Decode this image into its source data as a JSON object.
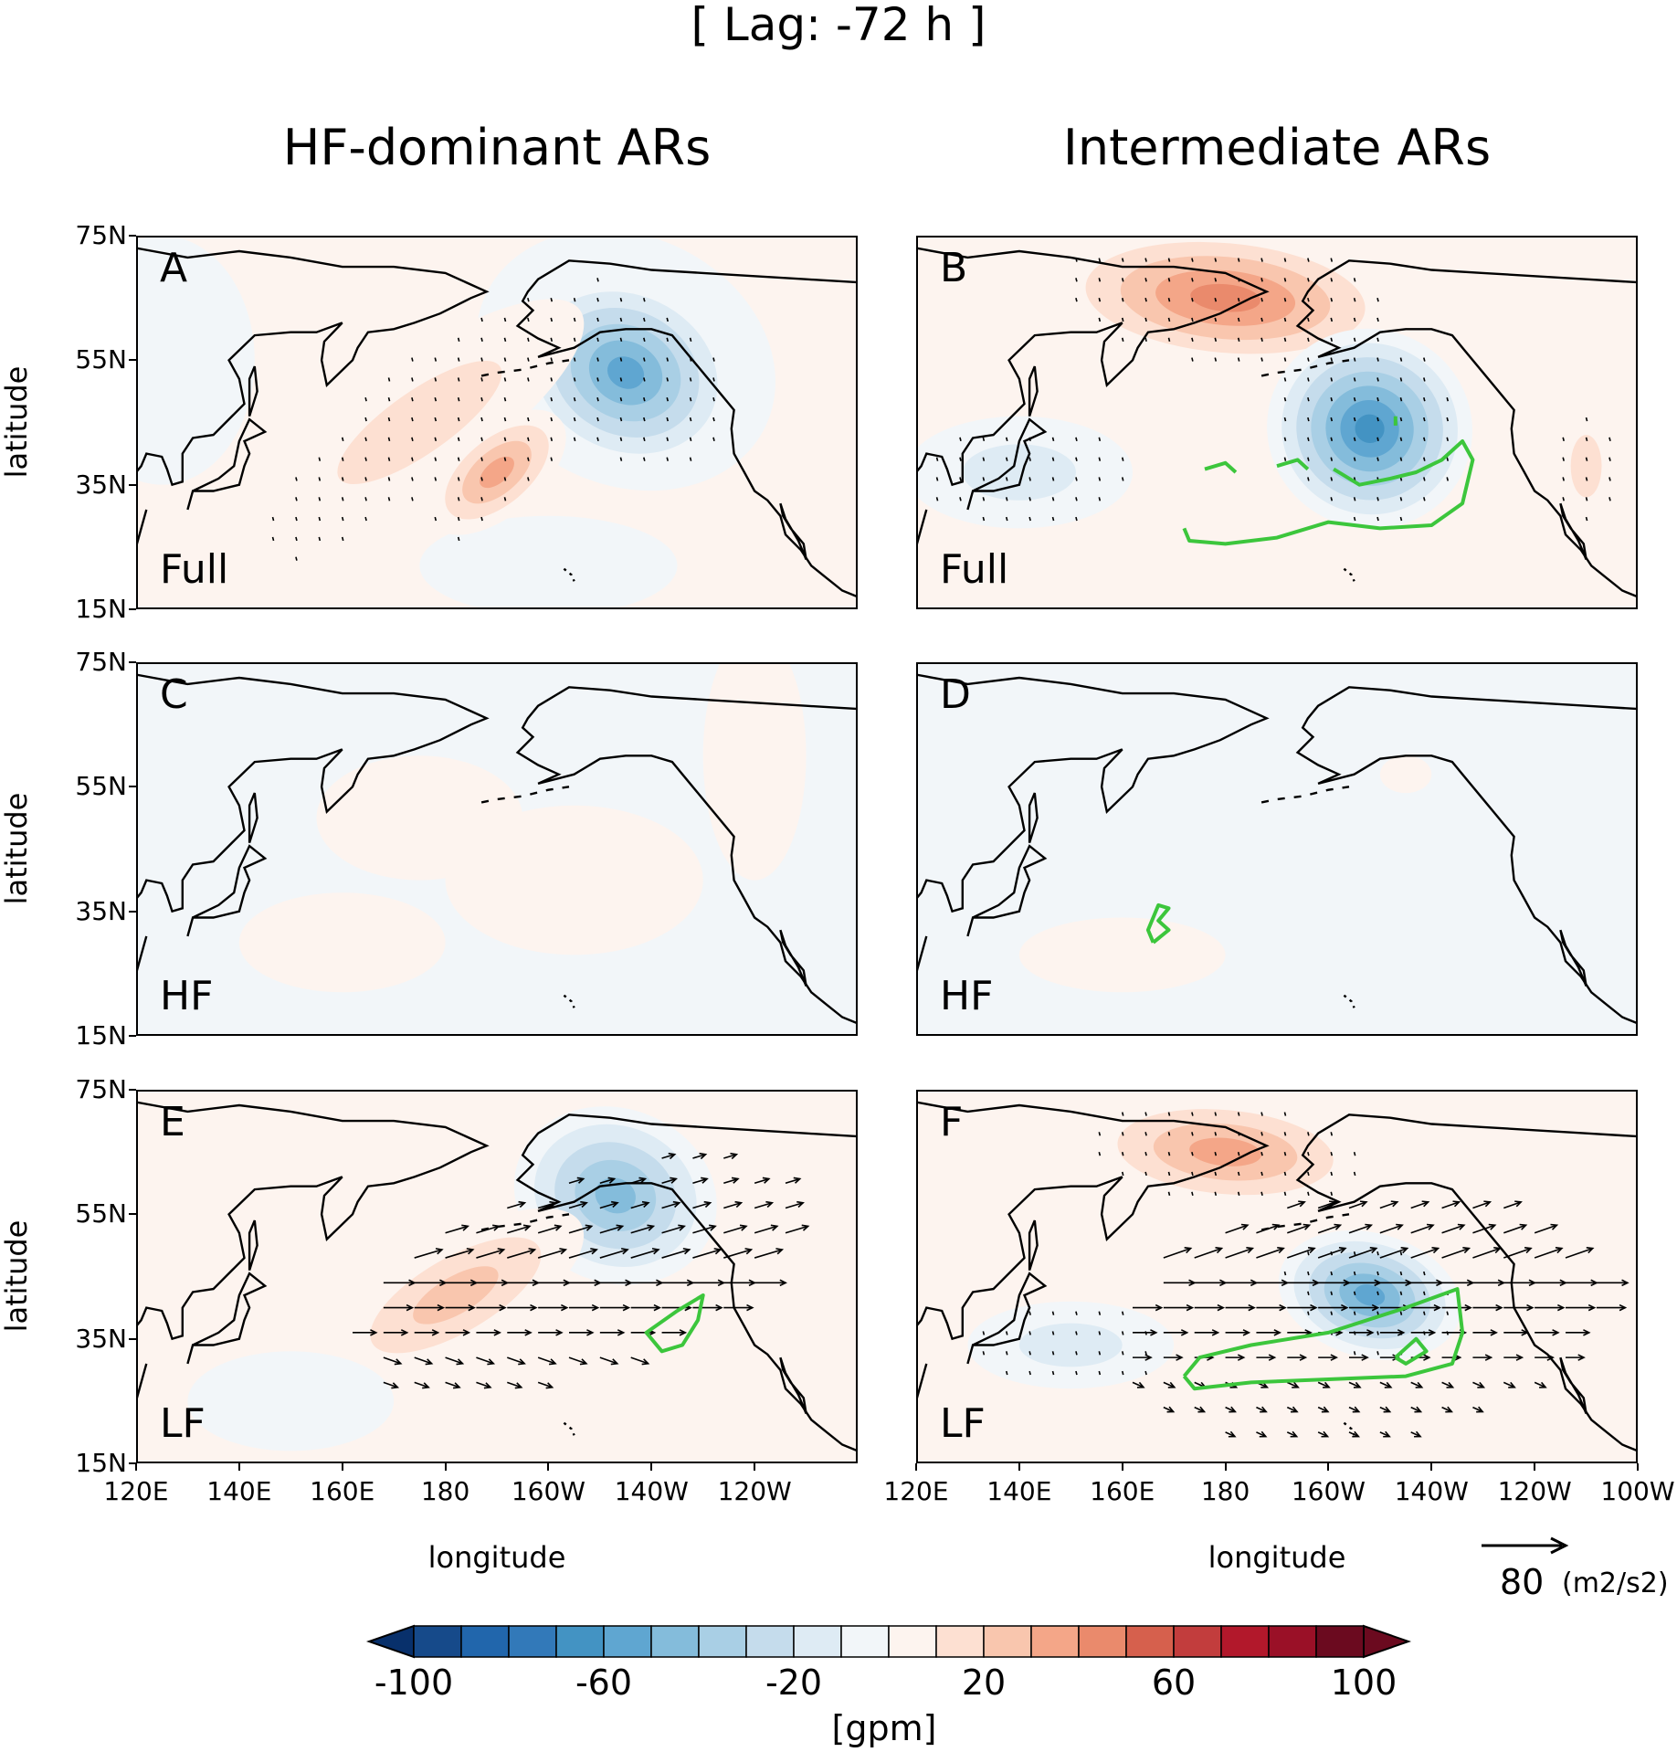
{
  "figure_title": "[ Lag: -72 h ]",
  "columns": [
    {
      "title": "HF-dominant ARs"
    },
    {
      "title": "Intermediate ARs"
    }
  ],
  "panels": [
    {
      "letter": "A",
      "component": "Full"
    },
    {
      "letter": "B",
      "component": "Full"
    },
    {
      "letter": "C",
      "component": "HF"
    },
    {
      "letter": "D",
      "component": "HF"
    },
    {
      "letter": "E",
      "component": "LF"
    },
    {
      "letter": "F",
      "component": "LF"
    }
  ],
  "axes": {
    "ylabel": "latitude",
    "xlabel": "longitude",
    "lat_ticks": [
      "75N",
      "55N",
      "35N",
      "15N"
    ],
    "lon_ticks_left": [
      "120E",
      "140E",
      "160E",
      "180",
      "160W",
      "140W",
      "120W"
    ],
    "lon_ticks_right": [
      "120E",
      "140E",
      "160E",
      "180",
      "160W",
      "140W",
      "120W",
      "100W"
    ]
  },
  "vector_key": {
    "value": "80",
    "units": "(m2/s2)"
  },
  "colorbar": {
    "ticks": [
      "-100",
      "-60",
      "-20",
      "20",
      "60",
      "100"
    ],
    "units": "[gpm]",
    "colors": [
      "#08306b",
      "#164a8a",
      "#2166ac",
      "#3279b9",
      "#4393c3",
      "#5fa6d1",
      "#84bcdb",
      "#a9cfe5",
      "#c5dcec",
      "#deebf4",
      "#f2f6f9",
      "#fdf4ef",
      "#fde0d2",
      "#f9c6ae",
      "#f4a688",
      "#ea8a6c",
      "#d6604d",
      "#c23d3d",
      "#b2182b",
      "#9a1027",
      "#6b0a1f"
    ]
  },
  "contour_color": "#3cc63c"
}
